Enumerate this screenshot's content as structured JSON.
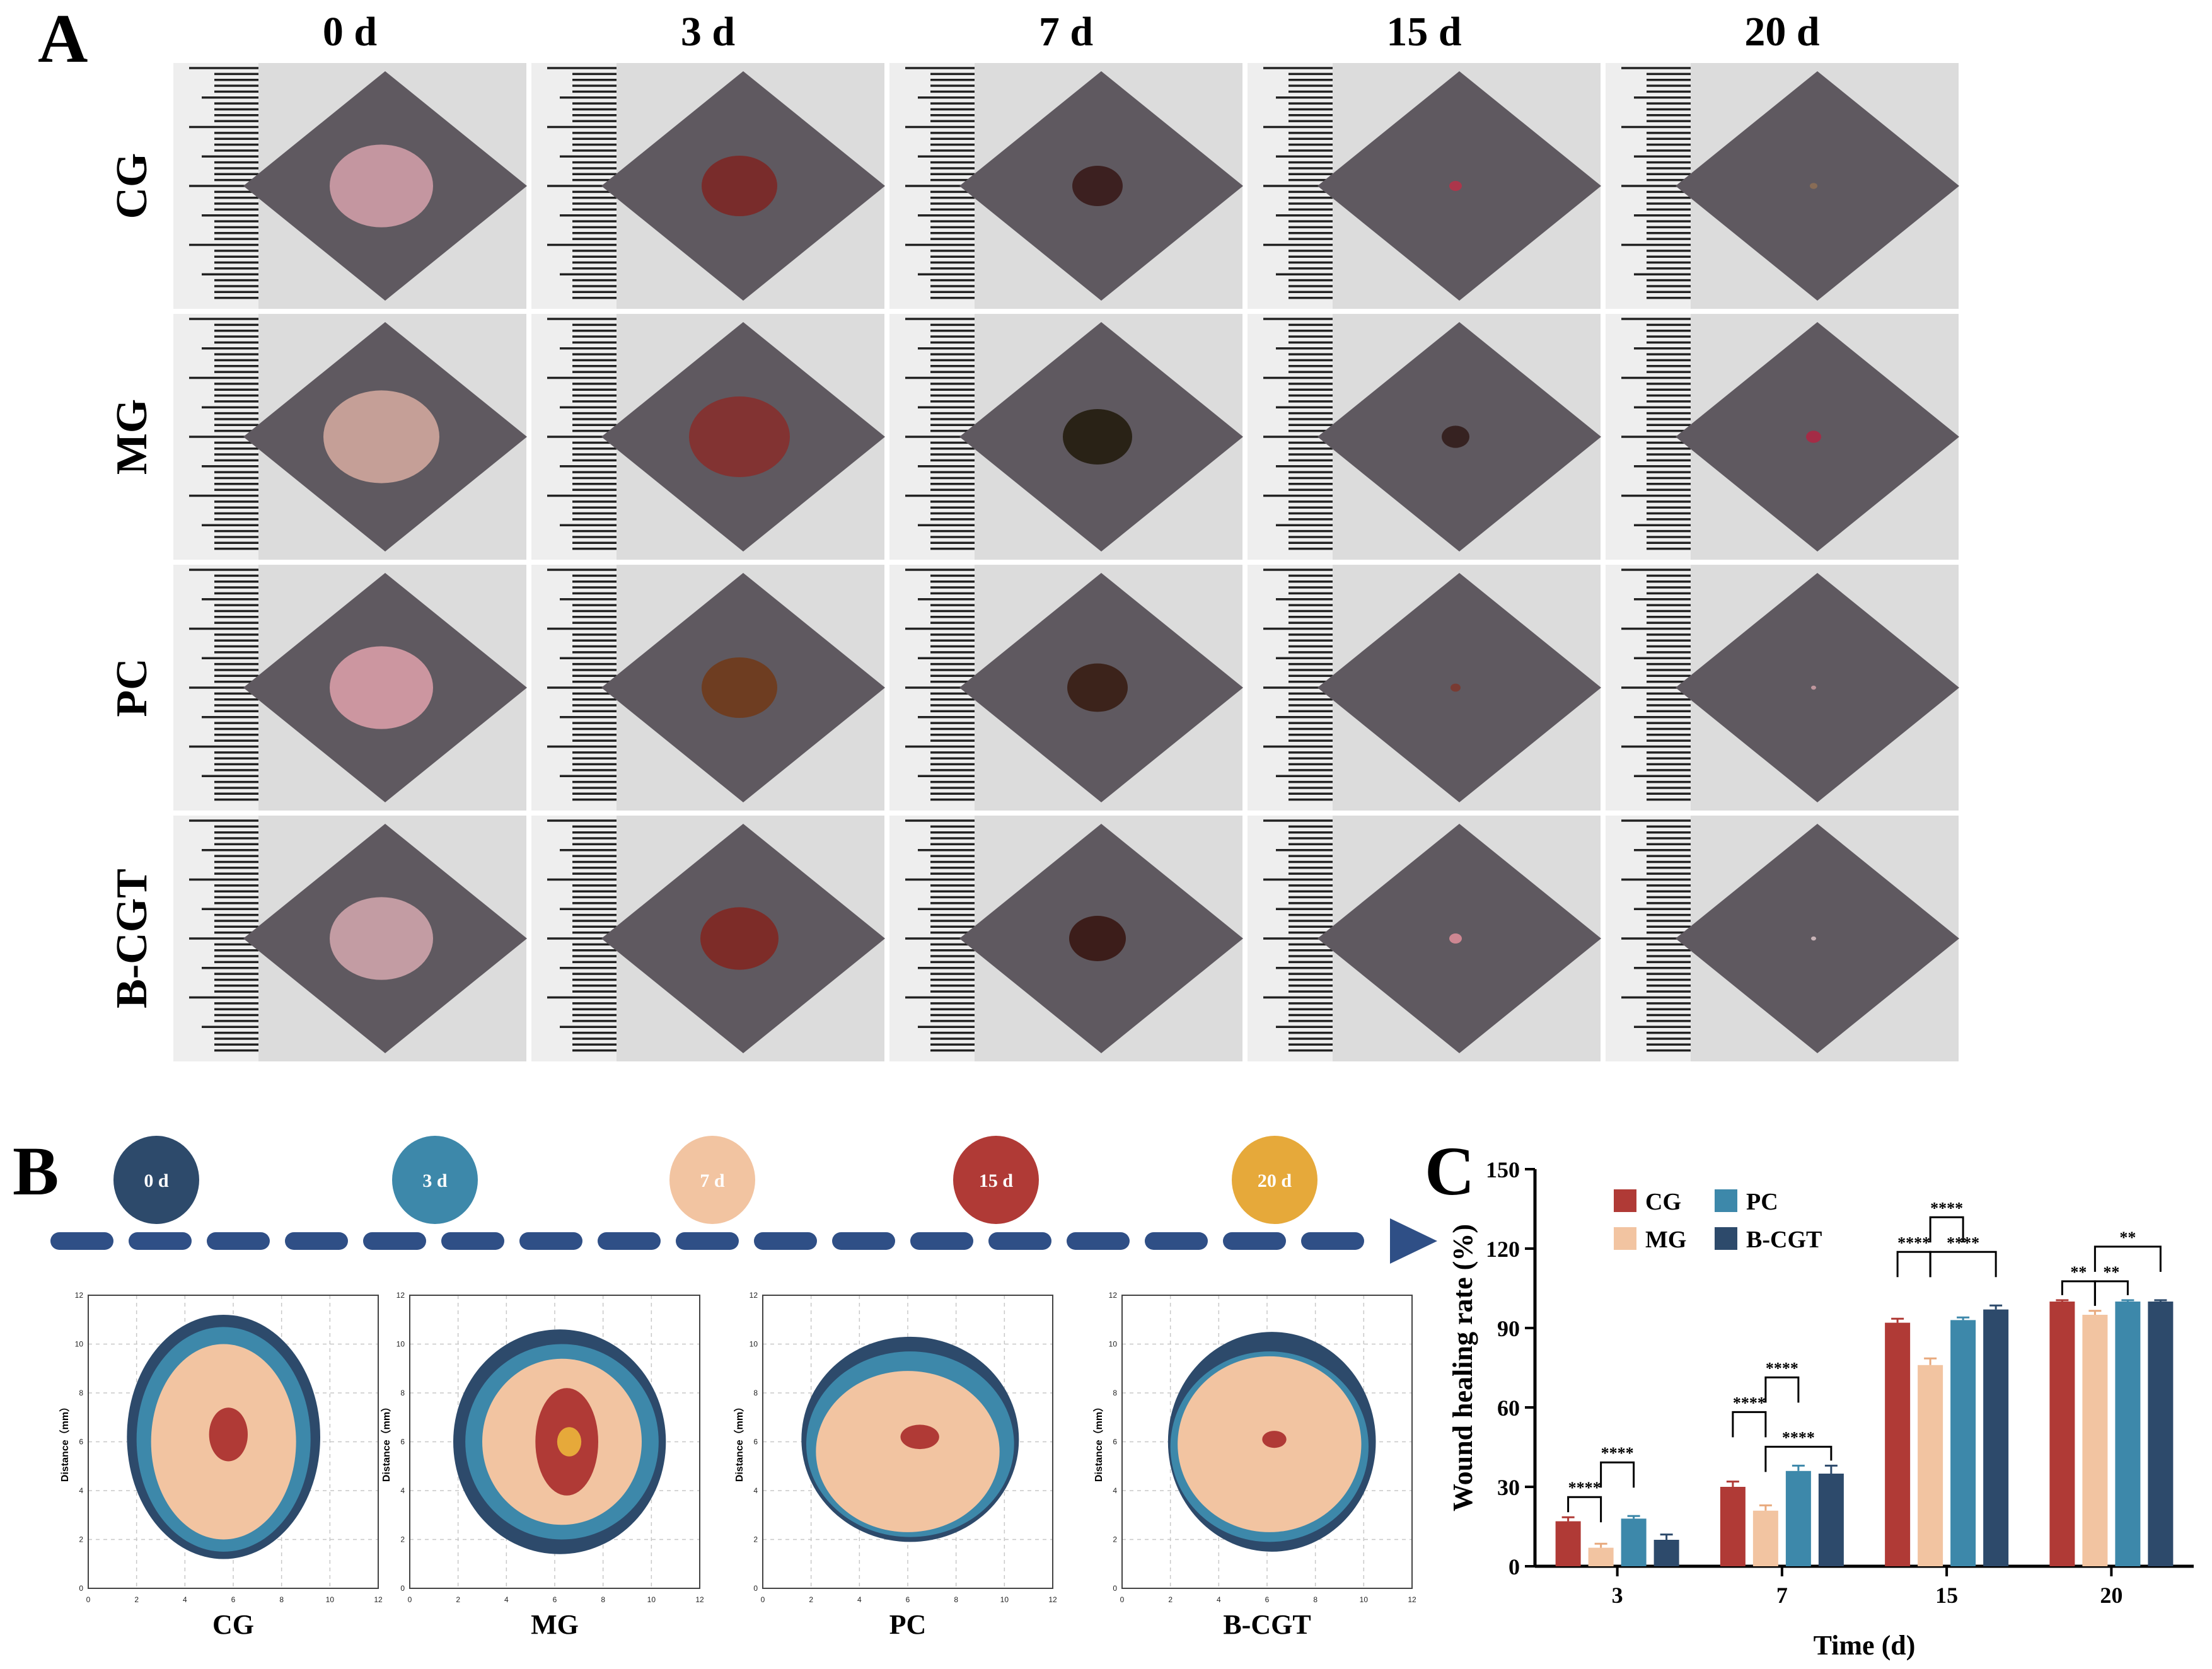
{
  "panel_a": {
    "letter": "A",
    "days": [
      "0 d",
      "3 d",
      "7 d",
      "15 d",
      "20 d"
    ],
    "groups": [
      "CG",
      "MG",
      "PC",
      "B-CGT"
    ],
    "wound_size": [
      [
        0.82,
        0.6,
        0.4,
        0.1,
        0.06
      ],
      [
        0.92,
        0.8,
        0.55,
        0.22,
        0.12
      ],
      [
        0.82,
        0.6,
        0.48,
        0.08,
        0.04
      ],
      [
        0.82,
        0.62,
        0.45,
        0.1,
        0.04
      ]
    ],
    "wound_colors": [
      [
        "#c99aa3",
        "#7a2a28",
        "#3a1d1c",
        "#b0354a",
        "#8a6e55"
      ],
      [
        "#caa39a",
        "#84322f",
        "#262012",
        "#34201d",
        "#a82a45"
      ],
      [
        "#d29aa3",
        "#6f3c1d",
        "#3a2117",
        "#7a3a30",
        "#c49aa0"
      ],
      [
        "#c8a0a6",
        "#7e2a25",
        "#3a1a16",
        "#d48a95",
        "#cfb9bd"
      ]
    ],
    "skin_color": "#5f5960",
    "paper_color": "#dcdcdc"
  },
  "panel_b": {
    "letter": "B",
    "timeline": [
      {
        "label": "0 d",
        "color": "#2d4a6b"
      },
      {
        "label": "3 d",
        "color": "#3d88aa"
      },
      {
        "label": "7 d",
        "color": "#f2c4a1"
      },
      {
        "label": "15 d",
        "color": "#b03a36"
      },
      {
        "label": "20 d",
        "color": "#e6a93a"
      }
    ],
    "arrow_color": "#2f4f86",
    "contour_plots": [
      {
        "title": "CG",
        "layers": [
          {
            "day": "0 d",
            "cx": 5.6,
            "cy": 6.2,
            "rx": 4.0,
            "ry": 5.0,
            "color": "#2d4a6b"
          },
          {
            "day": "3 d",
            "cx": 5.6,
            "cy": 6.1,
            "rx": 3.6,
            "ry": 4.6,
            "color": "#3d88aa"
          },
          {
            "day": "7 d",
            "cx": 5.6,
            "cy": 6.0,
            "rx": 3.0,
            "ry": 4.0,
            "color": "#f2c4a1"
          },
          {
            "day": "15 d",
            "cx": 5.8,
            "cy": 6.3,
            "rx": 0.8,
            "ry": 1.1,
            "color": "#b03a36"
          }
        ]
      },
      {
        "title": "MG",
        "layers": [
          {
            "day": "0 d",
            "cx": 6.2,
            "cy": 6.0,
            "rx": 4.4,
            "ry": 4.6,
            "color": "#2d4a6b"
          },
          {
            "day": "3 d",
            "cx": 6.3,
            "cy": 6.0,
            "rx": 4.0,
            "ry": 4.0,
            "color": "#3d88aa"
          },
          {
            "day": "7 d",
            "cx": 6.3,
            "cy": 6.0,
            "rx": 3.3,
            "ry": 3.4,
            "color": "#f2c4a1"
          },
          {
            "day": "15 d",
            "cx": 6.5,
            "cy": 6.0,
            "rx": 1.3,
            "ry": 2.2,
            "color": "#b03a36"
          },
          {
            "day": "20 d",
            "cx": 6.6,
            "cy": 6.0,
            "rx": 0.5,
            "ry": 0.6,
            "color": "#e6a93a"
          }
        ]
      },
      {
        "title": "PC",
        "layers": [
          {
            "day": "0 d",
            "cx": 6.1,
            "cy": 6.1,
            "rx": 4.5,
            "ry": 4.2,
            "color": "#2d4a6b"
          },
          {
            "day": "3 d",
            "cx": 6.1,
            "cy": 5.9,
            "rx": 4.3,
            "ry": 3.8,
            "color": "#3d88aa"
          },
          {
            "day": "7 d",
            "cx": 6.0,
            "cy": 5.6,
            "rx": 3.8,
            "ry": 3.3,
            "color": "#f2c4a1"
          },
          {
            "day": "15 d",
            "cx": 6.5,
            "cy": 6.2,
            "rx": 0.8,
            "ry": 0.5,
            "color": "#b03a36"
          }
        ]
      },
      {
        "title": "B-CGT",
        "layers": [
          {
            "day": "0 d",
            "cx": 6.2,
            "cy": 6.0,
            "rx": 4.3,
            "ry": 4.5,
            "color": "#2d4a6b"
          },
          {
            "day": "3 d",
            "cx": 6.1,
            "cy": 5.8,
            "rx": 4.1,
            "ry": 3.9,
            "color": "#3d88aa"
          },
          {
            "day": "7 d",
            "cx": 6.1,
            "cy": 5.9,
            "rx": 3.8,
            "ry": 3.6,
            "color": "#f2c4a1"
          },
          {
            "day": "15 d",
            "cx": 6.3,
            "cy": 6.1,
            "rx": 0.5,
            "ry": 0.35,
            "color": "#b03a36"
          }
        ]
      }
    ],
    "axis": {
      "xlim": [
        0,
        12
      ],
      "ylim": [
        0,
        12
      ],
      "ticks": [
        0,
        2,
        4,
        6,
        8,
        10,
        12
      ],
      "ylabel": "Distance（mm）"
    }
  },
  "panel_c": {
    "letter": "C",
    "chart_data": {
      "type": "bar",
      "categories": [
        "3",
        "7",
        "15",
        "20"
      ],
      "series": [
        {
          "name": "CG",
          "color": "#b03a36",
          "values": [
            17,
            30,
            92,
            100
          ],
          "errors": [
            1.5,
            2.0,
            1.5,
            0.5
          ]
        },
        {
          "name": "MG",
          "color": "#f2c4a1",
          "values": [
            7,
            21,
            76,
            95
          ],
          "errors": [
            1.5,
            2.0,
            2.5,
            1.5
          ]
        },
        {
          "name": "PC",
          "color": "#3d88aa",
          "values": [
            18,
            36,
            93,
            100
          ],
          "errors": [
            1.0,
            2.0,
            1.0,
            0.5
          ]
        },
        {
          "name": "B-CGT",
          "color": "#2d4a6b",
          "values": [
            10,
            35,
            97,
            100
          ],
          "errors": [
            2.0,
            3.0,
            1.5,
            0.5
          ]
        }
      ],
      "title": "",
      "xlabel": "Time (d)",
      "ylabel": "Wound healing rate (%)",
      "ylim": [
        0,
        150
      ],
      "yticks": [
        0,
        30,
        60,
        90,
        120,
        150
      ],
      "legend_position": "top-left",
      "significance": [
        {
          "category": 0,
          "from": 0,
          "to": 1,
          "label": "****",
          "level": 0
        },
        {
          "category": 0,
          "from": 1,
          "to": 2,
          "label": "****",
          "level": 1
        },
        {
          "category": 1,
          "from": 0,
          "to": 1,
          "label": "****",
          "level": 1
        },
        {
          "category": 1,
          "from": 1,
          "to": 2,
          "label": "****",
          "level": 2
        },
        {
          "category": 1,
          "from": 1,
          "to": 3,
          "label": "****",
          "level": 0
        },
        {
          "category": 2,
          "from": 0,
          "to": 1,
          "label": "****",
          "level": 1
        },
        {
          "category": 2,
          "from": 1,
          "to": 2,
          "label": "****",
          "level": 2
        },
        {
          "category": 2,
          "from": 1,
          "to": 3,
          "label": "****",
          "level": 1
        },
        {
          "category": 3,
          "from": 0,
          "to": 1,
          "label": "**",
          "level": 0
        },
        {
          "category": 3,
          "from": 1,
          "to": 2,
          "label": "**",
          "level": 0
        },
        {
          "category": 3,
          "from": 1,
          "to": 3,
          "label": "**",
          "level": 1
        }
      ]
    }
  }
}
